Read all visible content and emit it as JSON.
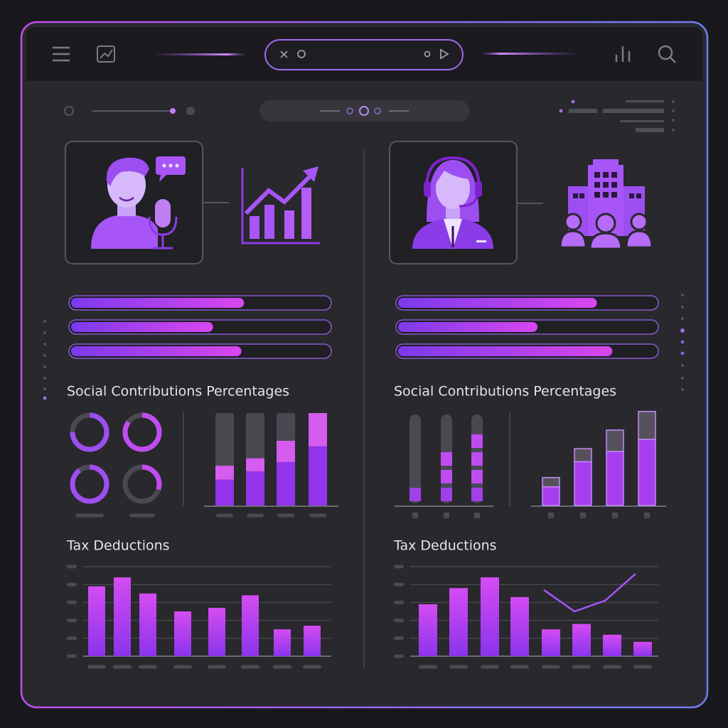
{
  "left": {
    "progress": {
      "values": [
        67,
        55,
        66
      ],
      "lim": [
        0,
        100
      ]
    },
    "contributions": {
      "title": "Social Contributions Percentages",
      "donuts": {
        "values": [
          75,
          85,
          90,
          30
        ],
        "lim": [
          0,
          100
        ]
      },
      "bars": {
        "type": "bar",
        "ylim": [
          0,
          100
        ],
        "series": [
          {
            "color": "#9333ea",
            "values": [
              28,
              37,
              47,
              64
            ]
          },
          {
            "color": "#d65cf0",
            "values": [
              15,
              14,
              23,
              36
            ]
          }
        ]
      }
    },
    "tax": {
      "type": "bar",
      "title": "Tax Deductions",
      "ylim": [
        0,
        5
      ],
      "yticks": [
        0,
        1,
        2,
        3,
        4,
        5
      ],
      "color": "#b03ff0",
      "values": [
        3.9,
        4.4,
        3.5,
        2.5,
        2.7,
        3.4,
        1.5,
        1.7
      ]
    }
  },
  "right": {
    "progress": {
      "values": [
        77,
        54,
        83
      ],
      "lim": [
        0,
        100
      ]
    },
    "contributions": {
      "title": "Social Contributions Percentages",
      "blocks": {
        "ylim": [
          0,
          5
        ],
        "color": "#a040e8",
        "values": [
          1,
          3,
          4
        ]
      },
      "bars": {
        "type": "bar",
        "ylim": [
          0,
          100
        ],
        "series": [
          {
            "color": "#a83ef0",
            "values": [
              20,
              47,
              58,
              71
            ]
          },
          {
            "color": "#55525e",
            "values": [
              10,
              14,
              23,
              30
            ]
          }
        ]
      }
    },
    "tax": {
      "type": "bar",
      "title": "Tax Deductions",
      "ylim": [
        0,
        5
      ],
      "yticks": [
        0,
        1,
        2,
        3,
        4,
        5
      ],
      "color": "#b03ff0",
      "values": [
        2.9,
        3.8,
        4.4,
        3.3,
        1.5,
        1.8,
        1.2,
        0.8
      ],
      "line": {
        "color": "#a855f7",
        "values": [
          null,
          null,
          null,
          null,
          3.7,
          2.5,
          3.1,
          4.6
        ]
      }
    }
  }
}
